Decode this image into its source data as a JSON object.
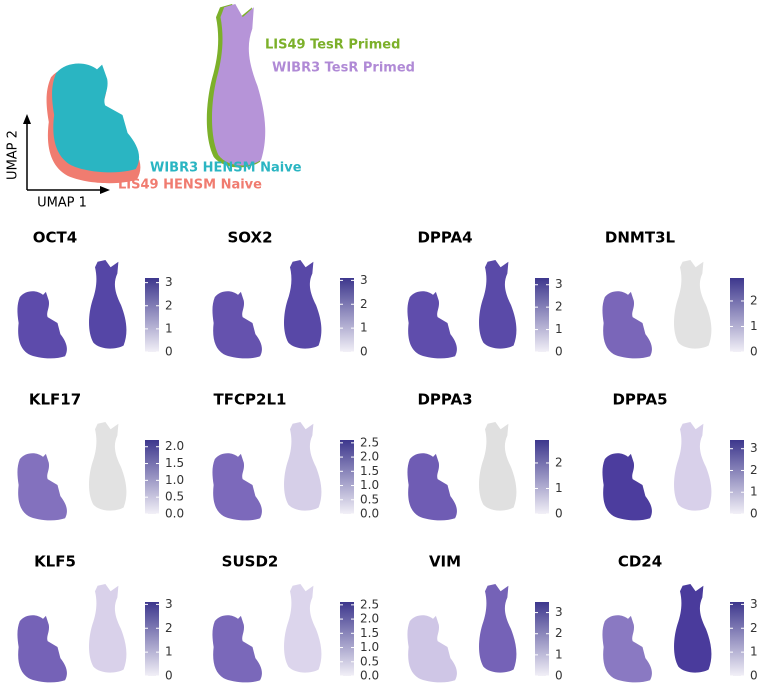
{
  "overview": {
    "x_label": "UMAP 1",
    "y_label": "UMAP 2",
    "labels": [
      {
        "text": "LIS49 TesR Primed",
        "color": "#7cb02a"
      },
      {
        "text": "WIBR3 TesR Primed",
        "color": "#b08ad6"
      },
      {
        "text": "WIBR3 HENSM Naive",
        "color": "#2ab5c2"
      },
      {
        "text": "LIS49 HENSM Naive",
        "color": "#f07c70"
      }
    ]
  },
  "panels": [
    {
      "title": "OCT4",
      "lim": [
        0,
        3.2
      ],
      "ticks": [
        0,
        1,
        2,
        3
      ],
      "naive_color": "#5d4bab",
      "primed_color": "#5546a6"
    },
    {
      "title": "SOX2",
      "lim": [
        0,
        3.1
      ],
      "ticks": [
        0,
        1,
        2,
        3
      ],
      "naive_color": "#6552ae",
      "primed_color": "#5848a7"
    },
    {
      "title": "DPPA4",
      "lim": [
        0,
        3.3
      ],
      "ticks": [
        0,
        1,
        2,
        3
      ],
      "naive_color": "#5f4dac",
      "primed_color": "#5a4aa8"
    },
    {
      "title": "DNMT3L",
      "lim": [
        0,
        2.9
      ],
      "ticks": [
        0,
        1,
        2
      ],
      "naive_color": "#7a66b9",
      "primed_color": "#e2e2e2"
    },
    {
      "title": "KLF17",
      "lim": [
        0,
        2.2
      ],
      "ticks": [
        {
          "value": 0,
          "label": "0.0"
        },
        0.5,
        {
          "value": 1,
          "label": "1.0"
        },
        1.5,
        {
          "value": 2,
          "label": "2.0"
        }
      ],
      "naive_color": "#8371be",
      "primed_color": "#e2e2e2"
    },
    {
      "title": "TFCP2L1",
      "lim": [
        0,
        2.6
      ],
      "ticks": [
        {
          "value": 0,
          "label": "0.0"
        },
        0.5,
        {
          "value": 1,
          "label": "1.0"
        },
        1.5,
        {
          "value": 2,
          "label": "2.0"
        },
        2.5
      ],
      "naive_color": "#7c69bb",
      "primed_color": "#d6cfe8"
    },
    {
      "title": "DPPA3",
      "lim": [
        0,
        2.9
      ],
      "ticks": [
        0,
        1,
        2
      ],
      "naive_color": "#6f5cb4",
      "primed_color": "#e0e0e0"
    },
    {
      "title": "DPPA5",
      "lim": [
        0,
        3.4
      ],
      "ticks": [
        0,
        1,
        2,
        3
      ],
      "naive_color": "#4c3d9e",
      "primed_color": "#d8d0ea"
    },
    {
      "title": "KLF5",
      "lim": [
        0,
        3.1
      ],
      "ticks": [
        0,
        1,
        2,
        3
      ],
      "naive_color": "#7562b7",
      "primed_color": "#d9d1ea"
    },
    {
      "title": "SUSD2",
      "lim": [
        0,
        2.6
      ],
      "ticks": [
        {
          "value": 0,
          "label": "0.0"
        },
        0.5,
        {
          "value": 1,
          "label": "1.0"
        },
        1.5,
        {
          "value": 2,
          "label": "2.0"
        },
        2.5
      ],
      "naive_color": "#7a68ba",
      "primed_color": "#dcd5ec"
    },
    {
      "title": "VIM",
      "lim": [
        0,
        3.5
      ],
      "ticks": [
        0,
        1,
        2,
        3
      ],
      "naive_color": "#cfc6e6",
      "primed_color": "#7562b7"
    },
    {
      "title": "CD24",
      "lim": [
        0,
        3.1
      ],
      "ticks": [
        0,
        1,
        2,
        3
      ],
      "naive_color": "#8a79c2",
      "primed_color": "#4a3b9c"
    }
  ]
}
